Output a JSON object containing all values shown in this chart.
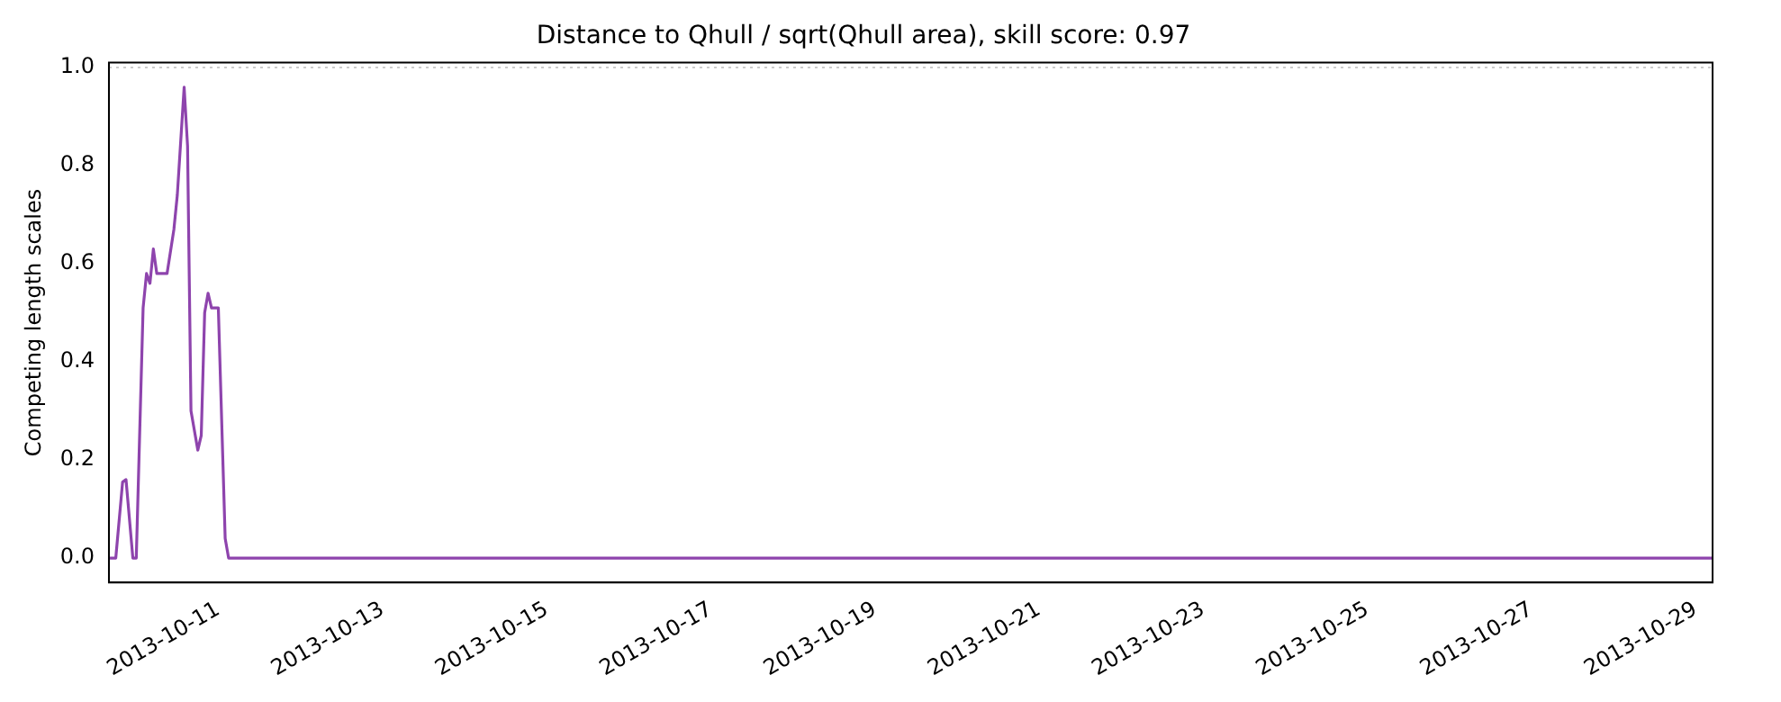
{
  "chart_data": {
    "type": "line",
    "title": "Distance to Qhull / sqrt(Qhull area), skill score: 0.97",
    "ylabel": "Competing length scales",
    "x": [
      "2013-10-09T16:00",
      "2013-10-09T18:00",
      "2013-10-09T20:00",
      "2013-10-09T21:00",
      "2013-10-09T23:00",
      "2013-10-10T00:00",
      "2013-10-10T02:00",
      "2013-10-10T03:00",
      "2013-10-10T04:00",
      "2013-10-10T05:00",
      "2013-10-10T06:00",
      "2013-10-10T09:00",
      "2013-10-10T11:00",
      "2013-10-10T12:00",
      "2013-10-10T14:00",
      "2013-10-10T15:00",
      "2013-10-10T16:00",
      "2013-10-10T18:00",
      "2013-10-10T19:00",
      "2013-10-10T20:00",
      "2013-10-10T21:00",
      "2013-10-10T22:00",
      "2013-10-11T00:00",
      "2013-10-11T02:00",
      "2013-10-11T03:00",
      "2013-10-29T05:00"
    ],
    "series": [
      {
        "color": "#8e44ad",
        "values": [
          0,
          0,
          0.155,
          0.16,
          0,
          0,
          0.51,
          0.58,
          0.56,
          0.63,
          0.58,
          0.58,
          0.67,
          0.74,
          0.96,
          0.84,
          0.3,
          0.22,
          0.25,
          0.5,
          0.54,
          0.51,
          0.51,
          0.04,
          0,
          0
        ]
      }
    ],
    "xlim": [
      "2013-10-09T16:00",
      "2013-10-29T05:00"
    ],
    "xticks": [
      "2013-10-11",
      "2013-10-13",
      "2013-10-15",
      "2013-10-17",
      "2013-10-19",
      "2013-10-21",
      "2013-10-23",
      "2013-10-25",
      "2013-10-27",
      "2013-10-29"
    ],
    "ylim": [
      -0.05,
      1.01
    ],
    "yticks": [
      {
        "value": 0,
        "label": "0.0"
      },
      {
        "value": 0.2,
        "label": "0.2"
      },
      {
        "value": 0.4,
        "label": "0.4"
      },
      {
        "value": 0.6,
        "label": "0.6"
      },
      {
        "value": 0.8,
        "label": "0.8"
      },
      {
        "value": 1,
        "label": "1.0"
      }
    ],
    "ref_lines": [
      {
        "axis": "y",
        "value": 1,
        "color": "#cccccc",
        "line_style": "dotted"
      }
    ],
    "grid": false,
    "legend": false,
    "marker": "none",
    "line_style": "solid"
  }
}
